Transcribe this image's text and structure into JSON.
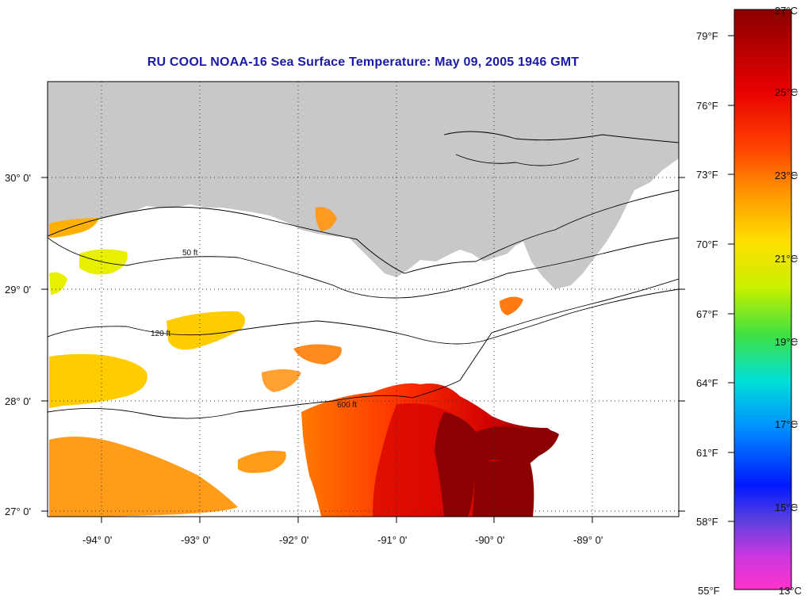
{
  "title": "RU COOL  NOAA-16  Sea Surface Temperature:  May 09, 2005 1946 GMT",
  "map": {
    "lat_labels": [
      "30° 0'",
      "29° 0'",
      "28° 0'",
      "27° 0'"
    ],
    "lon_labels": [
      "-94° 0'",
      "-93° 0'",
      "-92° 0'",
      "-91° 0'",
      "-90° 0'",
      "-89° 0'"
    ],
    "contour_labels": [
      "50 ft",
      "120 ft",
      "600 ft"
    ]
  },
  "colorbar": {
    "fahrenheit_labels": [
      "79°F",
      "76°F",
      "73°F",
      "70°F",
      "67°F",
      "64°F",
      "61°F",
      "58°F",
      "55°F"
    ],
    "celsius_labels": [
      "27°C",
      "25°C",
      "23°C",
      "21°C",
      "19°C",
      "17°C",
      "15°C",
      "13°C"
    ],
    "range_c": [
      13,
      27
    ]
  },
  "colors": {
    "title": "#1a1aa8",
    "land": "#c8c8c8",
    "warm_max": "#8b0000",
    "cool_min": "#ff33cc"
  }
}
